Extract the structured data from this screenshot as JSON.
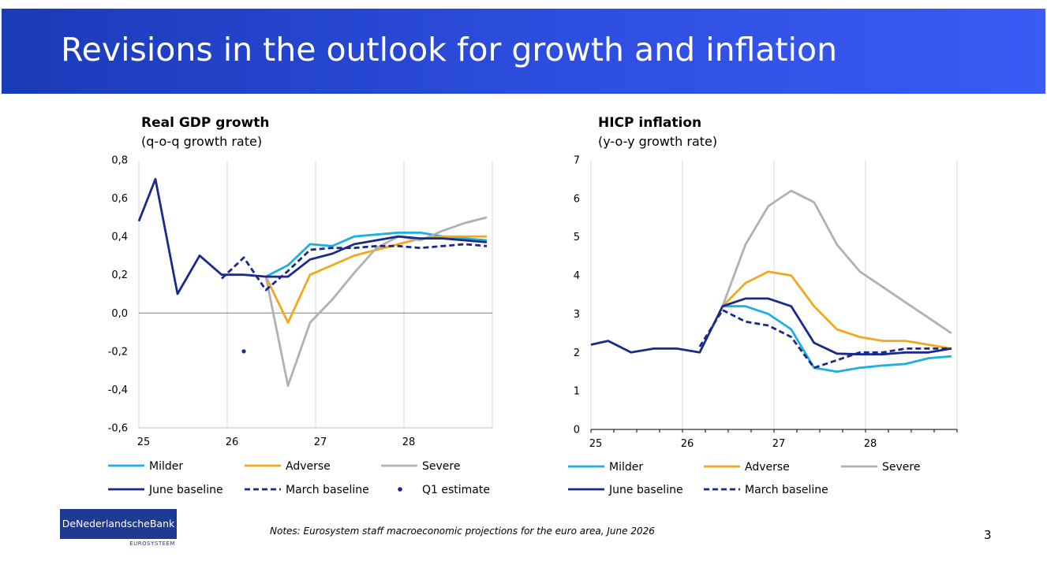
{
  "header": {
    "title": "Revisions in the outlook for growth and inflation"
  },
  "footer": {
    "logo_text": "DeNederlandscheBank",
    "logo_subtext": "EUROSYSTEEM",
    "notes": "Notes: Eurosystem staff macroeconomic projections for the euro area, June 2026",
    "page_number": "3"
  },
  "colors": {
    "milder": "#1eaee0",
    "adverse": "#f2a81d",
    "severe": "#b0b0b8",
    "june_baseline": "#1a2a8c",
    "march_baseline": "#1a2a8c",
    "q1_estimate": "#1a2a8c"
  },
  "chart_data": [
    {
      "id": "gdp",
      "type": "line",
      "title": "Real GDP growth",
      "subtitle": "(q-o-q growth rate)",
      "xlabel": "",
      "ylabel": "",
      "xlim": [
        0,
        16
      ],
      "ylim": [
        -0.6,
        0.8
      ],
      "y_ticks": [
        0.8,
        0.6,
        0.4,
        0.2,
        0.0,
        -0.2,
        -0.4,
        -0.6
      ],
      "y_tick_labels": [
        "0,8",
        "0,6",
        "0,4",
        "0,2",
        "0,0",
        "-0,2",
        "-0,4",
        "-0,6"
      ],
      "x_ticks": [
        0,
        4,
        8,
        12
      ],
      "x_tick_labels": [
        "25",
        "26",
        "27",
        "28"
      ],
      "zero_line": 0,
      "grid": "vertical",
      "legend_position": "bottom",
      "series": [
        {
          "name": "Milder",
          "key": "milder",
          "dashed": false,
          "points": [
            [
              5.75,
              0.19
            ],
            [
              6.75,
              0.25
            ],
            [
              7.75,
              0.36
            ],
            [
              8.75,
              0.35
            ],
            [
              9.75,
              0.4
            ],
            [
              10.75,
              0.41
            ],
            [
              11.75,
              0.42
            ],
            [
              12.75,
              0.42
            ],
            [
              13.75,
              0.4
            ],
            [
              14.75,
              0.39
            ],
            [
              15.75,
              0.38
            ]
          ]
        },
        {
          "name": "Adverse",
          "key": "adverse",
          "dashed": false,
          "points": [
            [
              5.75,
              0.19
            ],
            [
              6.75,
              -0.05
            ],
            [
              7.75,
              0.2
            ],
            [
              8.75,
              0.25
            ],
            [
              9.75,
              0.3
            ],
            [
              10.75,
              0.33
            ],
            [
              11.75,
              0.36
            ],
            [
              12.75,
              0.39
            ],
            [
              13.75,
              0.4
            ],
            [
              14.75,
              0.4
            ],
            [
              15.75,
              0.4
            ]
          ]
        },
        {
          "name": "Severe",
          "key": "severe",
          "dashed": false,
          "points": [
            [
              5.75,
              0.19
            ],
            [
              6.75,
              -0.38
            ],
            [
              7.75,
              -0.05
            ],
            [
              8.75,
              0.07
            ],
            [
              9.75,
              0.21
            ],
            [
              10.75,
              0.34
            ],
            [
              11.75,
              0.4
            ],
            [
              12.75,
              0.38
            ],
            [
              13.75,
              0.43
            ],
            [
              14.75,
              0.47
            ],
            [
              15.75,
              0.5
            ]
          ]
        },
        {
          "name": "June baseline",
          "key": "june_baseline",
          "dashed": false,
          "points": [
            [
              0,
              0.48
            ],
            [
              0.75,
              0.7
            ],
            [
              1.75,
              0.1
            ],
            [
              2.75,
              0.3
            ],
            [
              3.75,
              0.2
            ],
            [
              4.75,
              0.2
            ],
            [
              5.75,
              0.19
            ],
            [
              6.75,
              0.19
            ],
            [
              7.75,
              0.28
            ],
            [
              8.75,
              0.31
            ],
            [
              9.75,
              0.36
            ],
            [
              10.75,
              0.38
            ],
            [
              11.75,
              0.4
            ],
            [
              12.75,
              0.39
            ],
            [
              13.75,
              0.39
            ],
            [
              14.75,
              0.38
            ],
            [
              15.75,
              0.37
            ]
          ]
        },
        {
          "name": "March baseline",
          "key": "march_baseline",
          "dashed": true,
          "points": [
            [
              3.75,
              0.18
            ],
            [
              4.75,
              0.29
            ],
            [
              5.75,
              0.12
            ],
            [
              6.75,
              0.22
            ],
            [
              7.75,
              0.33
            ],
            [
              8.75,
              0.34
            ],
            [
              9.75,
              0.34
            ],
            [
              10.75,
              0.35
            ],
            [
              11.75,
              0.35
            ],
            [
              12.75,
              0.34
            ],
            [
              13.75,
              0.35
            ],
            [
              14.75,
              0.36
            ],
            [
              15.75,
              0.35
            ]
          ]
        },
        {
          "name": "Q1 estimate",
          "key": "q1_estimate",
          "marker": "point",
          "points": [
            [
              4.75,
              -0.2
            ]
          ]
        }
      ]
    },
    {
      "id": "hicp",
      "type": "line",
      "title": "HICP inflation",
      "subtitle": "(y-o-y growth rate)",
      "xlabel": "",
      "ylabel": "",
      "xlim": [
        0,
        16
      ],
      "ylim": [
        0,
        7
      ],
      "y_ticks": [
        7,
        6,
        5,
        4,
        3,
        2,
        1,
        0
      ],
      "y_tick_labels": [
        "7",
        "6",
        "5",
        "4",
        "3",
        "2",
        "1",
        "0"
      ],
      "x_ticks": [
        0,
        4,
        8,
        12
      ],
      "x_tick_labels": [
        "25",
        "26",
        "27",
        "28"
      ],
      "grid": "vertical",
      "legend_position": "bottom",
      "series": [
        {
          "name": "Milder",
          "key": "milder",
          "dashed": false,
          "points": [
            [
              5.75,
              3.2
            ],
            [
              6.75,
              3.2
            ],
            [
              7.75,
              3.0
            ],
            [
              8.75,
              2.6
            ],
            [
              9.75,
              1.6
            ],
            [
              10.75,
              1.5
            ],
            [
              11.75,
              1.6
            ],
            [
              12.75,
              1.66
            ],
            [
              13.75,
              1.7
            ],
            [
              14.75,
              1.85
            ],
            [
              15.75,
              1.9
            ]
          ]
        },
        {
          "name": "Adverse",
          "key": "adverse",
          "dashed": false,
          "points": [
            [
              5.75,
              3.2
            ],
            [
              6.75,
              3.8
            ],
            [
              7.75,
              4.1
            ],
            [
              8.75,
              4.0
            ],
            [
              9.75,
              3.2
            ],
            [
              10.75,
              2.6
            ],
            [
              11.75,
              2.4
            ],
            [
              12.75,
              2.3
            ],
            [
              13.75,
              2.3
            ],
            [
              14.75,
              2.2
            ],
            [
              15.75,
              2.1
            ]
          ]
        },
        {
          "name": "Severe",
          "key": "severe",
          "dashed": false,
          "points": [
            [
              5.75,
              3.2
            ],
            [
              6.75,
              4.8
            ],
            [
              7.75,
              5.8
            ],
            [
              8.75,
              6.2
            ],
            [
              9.75,
              5.9
            ],
            [
              10.75,
              4.8
            ],
            [
              11.75,
              4.1
            ],
            [
              12.75,
              3.7
            ],
            [
              13.75,
              3.3
            ],
            [
              14.75,
              2.9
            ],
            [
              15.75,
              2.5
            ]
          ]
        },
        {
          "name": "June baseline",
          "key": "june_baseline",
          "dashed": false,
          "points": [
            [
              0,
              2.2
            ],
            [
              0.75,
              2.3
            ],
            [
              1.75,
              2.0
            ],
            [
              2.75,
              2.1
            ],
            [
              3.75,
              2.1
            ],
            [
              4.75,
              2.0
            ],
            [
              5.75,
              3.2
            ],
            [
              6.75,
              3.4
            ],
            [
              7.75,
              3.4
            ],
            [
              8.75,
              3.2
            ],
            [
              9.75,
              2.25
            ],
            [
              10.75,
              1.97
            ],
            [
              11.75,
              1.95
            ],
            [
              12.75,
              1.95
            ],
            [
              13.75,
              2.0
            ],
            [
              14.75,
              2.0
            ],
            [
              15.75,
              2.1
            ]
          ]
        },
        {
          "name": "March baseline",
          "key": "march_baseline",
          "dashed": true,
          "points": [
            [
              4.75,
              2.15
            ],
            [
              5.75,
              3.1
            ],
            [
              6.75,
              2.8
            ],
            [
              7.75,
              2.7
            ],
            [
              8.75,
              2.4
            ],
            [
              9.75,
              1.6
            ],
            [
              10.75,
              1.8
            ],
            [
              11.75,
              2.0
            ],
            [
              12.75,
              2.0
            ],
            [
              13.75,
              2.1
            ],
            [
              14.75,
              2.1
            ],
            [
              15.75,
              2.1
            ]
          ]
        }
      ]
    }
  ],
  "legends": {
    "gdp": [
      {
        "key": "milder",
        "label": "Milder",
        "kind": "line"
      },
      {
        "key": "adverse",
        "label": "Adverse",
        "kind": "line"
      },
      {
        "key": "severe",
        "label": "Severe",
        "kind": "line"
      },
      {
        "key": "june_baseline",
        "label": "June baseline",
        "kind": "line"
      },
      {
        "key": "march_baseline",
        "label": "March baseline",
        "kind": "dash"
      },
      {
        "key": "q1_estimate",
        "label": "Q1 estimate",
        "kind": "dot"
      }
    ],
    "hicp": [
      {
        "key": "milder",
        "label": "Milder",
        "kind": "line"
      },
      {
        "key": "adverse",
        "label": "Adverse",
        "kind": "line"
      },
      {
        "key": "severe",
        "label": "Severe",
        "kind": "line"
      },
      {
        "key": "june_baseline",
        "label": "June baseline",
        "kind": "line"
      },
      {
        "key": "march_baseline",
        "label": "March baseline",
        "kind": "dash"
      }
    ]
  }
}
